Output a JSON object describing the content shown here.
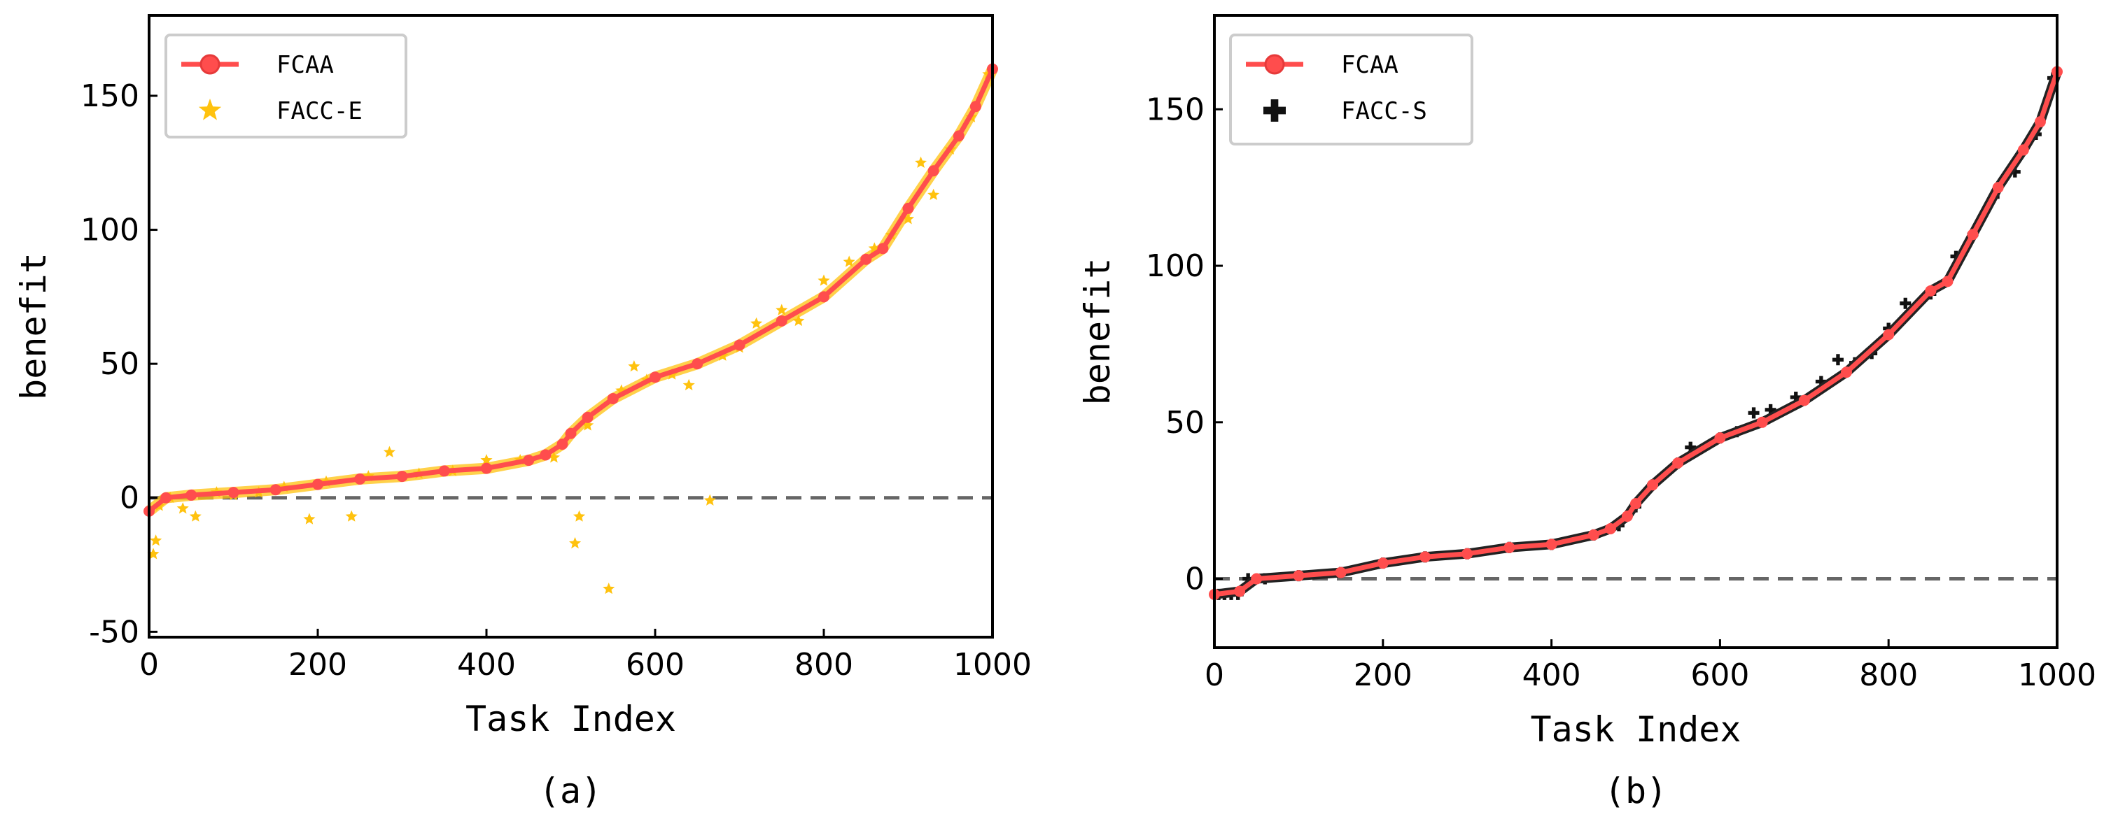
{
  "chart_data": [
    {
      "id": "a",
      "type": "scatter",
      "caption": "(a)",
      "xlabel": "Task Index",
      "ylabel": "benefit",
      "xlim": [
        0,
        1000
      ],
      "ylim": [
        -52,
        180
      ],
      "xticks": [
        0,
        200,
        400,
        600,
        800,
        1000
      ],
      "yticks": [
        -50,
        0,
        50,
        100,
        150
      ],
      "zero_line": true,
      "legend": {
        "position": "top-left",
        "entries": [
          "FCAA",
          "FACC-E"
        ]
      },
      "colors": {
        "fcaa": "#ff4d4d",
        "comparison": "#ffc20e",
        "zero_line": "#666666"
      },
      "series": [
        {
          "name": "FCAA",
          "kind": "line-markers",
          "x": [
            0,
            20,
            50,
            100,
            150,
            200,
            250,
            300,
            350,
            400,
            450,
            470,
            490,
            500,
            520,
            550,
            600,
            650,
            700,
            750,
            800,
            850,
            870,
            900,
            930,
            960,
            980,
            1000
          ],
          "y": [
            -5,
            0,
            1,
            2,
            3,
            5,
            7,
            8,
            10,
            11,
            14,
            16,
            20,
            24,
            30,
            37,
            45,
            50,
            57,
            66,
            75,
            89,
            93,
            108,
            122,
            135,
            146,
            160
          ]
        },
        {
          "name": "FACC-E",
          "kind": "star-scatter",
          "x": [
            5,
            8,
            12,
            25,
            40,
            55,
            80,
            100,
            130,
            160,
            190,
            210,
            240,
            260,
            285,
            320,
            360,
            400,
            440,
            480,
            505,
            510,
            520,
            545,
            560,
            575,
            590,
            620,
            640,
            665,
            680,
            700,
            720,
            750,
            770,
            800,
            830,
            860,
            880,
            900,
            915,
            930,
            950,
            975,
            995
          ],
          "y": [
            -21,
            -16,
            -3,
            0,
            -4,
            -7,
            2,
            1,
            2,
            4,
            -8,
            6,
            -7,
            8,
            17,
            9,
            10,
            14,
            14,
            15,
            -17,
            -7,
            27,
            -34,
            40,
            49,
            44,
            46,
            42,
            -1,
            53,
            56,
            65,
            70,
            66,
            81,
            88,
            93,
            98,
            104,
            125,
            113,
            130,
            142,
            158
          ]
        }
      ]
    },
    {
      "id": "b",
      "type": "scatter",
      "caption": "(b)",
      "xlabel": "Task Index",
      "ylabel": "benefit",
      "xlim": [
        0,
        1000
      ],
      "ylim": [
        -22,
        180
      ],
      "xticks": [
        0,
        200,
        400,
        600,
        800,
        1000
      ],
      "yticks": [
        0,
        50,
        100,
        150
      ],
      "zero_line": true,
      "legend": {
        "position": "top-left",
        "entries": [
          "FCAA",
          "FACC-S"
        ]
      },
      "colors": {
        "fcaa": "#ff4d4d",
        "comparison": "#111111",
        "zero_line": "#666666"
      },
      "series": [
        {
          "name": "FCAA",
          "kind": "line-markers",
          "x": [
            0,
            30,
            50,
            100,
            150,
            200,
            250,
            300,
            350,
            400,
            450,
            470,
            490,
            500,
            520,
            550,
            600,
            650,
            700,
            750,
            800,
            850,
            870,
            900,
            930,
            960,
            980,
            1000
          ],
          "y": [
            -5,
            -4,
            0,
            1,
            2,
            5,
            7,
            8,
            10,
            11,
            14,
            16,
            20,
            24,
            30,
            37,
            45,
            50,
            57,
            66,
            78,
            92,
            95,
            110,
            125,
            137,
            146,
            162
          ]
        },
        {
          "name": "FACC-S",
          "kind": "cross-scatter",
          "x": [
            5,
            12,
            20,
            28,
            40,
            60,
            100,
            150,
            200,
            250,
            300,
            350,
            400,
            450,
            480,
            500,
            520,
            550,
            565,
            600,
            620,
            640,
            660,
            690,
            720,
            740,
            760,
            780,
            800,
            820,
            850,
            880,
            900,
            925,
            950,
            975,
            995
          ],
          "y": [
            -5,
            -5,
            -5,
            -5,
            0,
            0,
            1,
            2,
            5,
            7,
            8,
            10,
            11,
            14,
            17,
            23,
            30,
            37,
            42,
            45,
            47,
            53,
            54,
            58,
            63,
            70,
            69,
            72,
            80,
            88,
            91,
            103,
            110,
            122,
            130,
            142,
            160
          ]
        }
      ]
    }
  ]
}
